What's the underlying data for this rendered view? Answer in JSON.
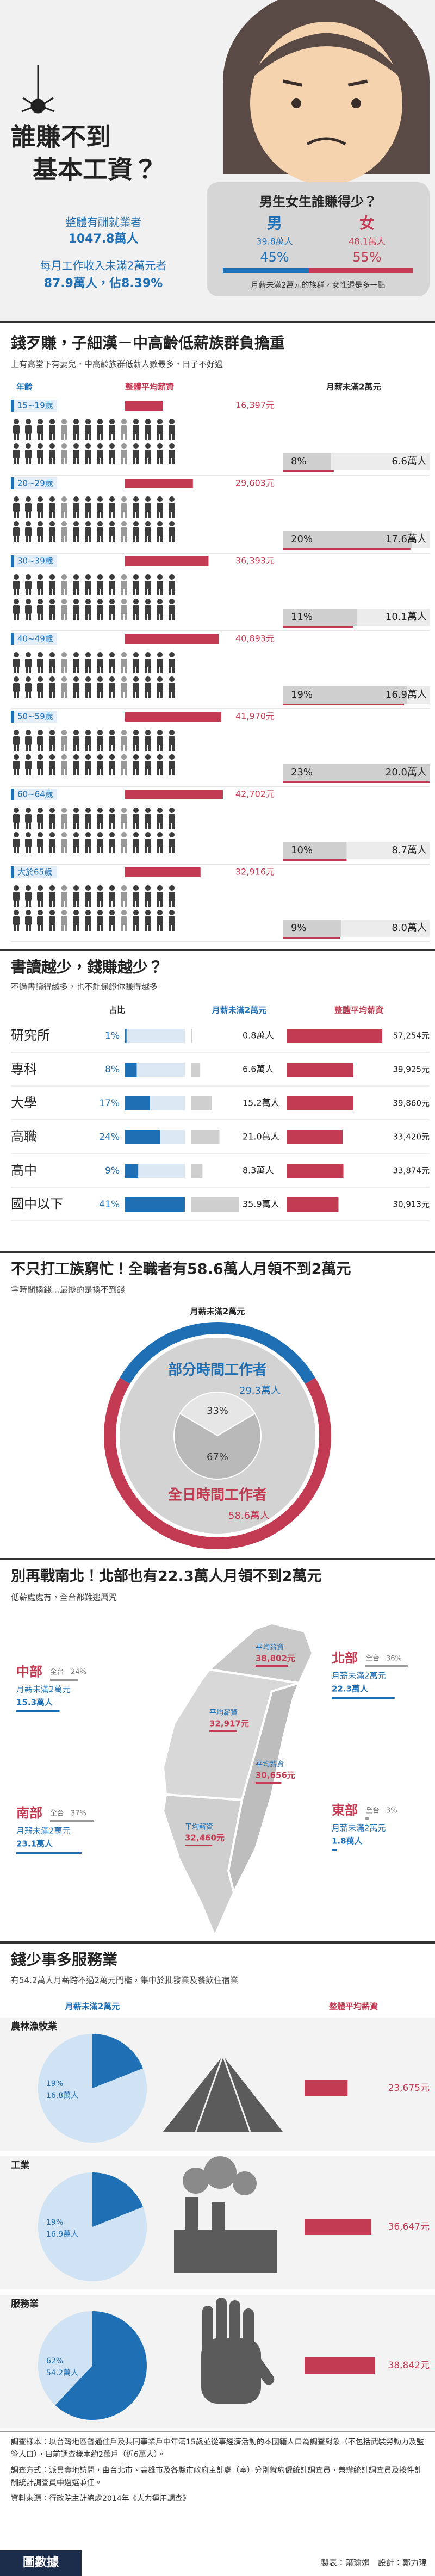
{
  "header": {
    "title_line1": "誰賺不到",
    "title_line2": "基本工資？",
    "employed_label": "整體有酬就業者",
    "employed_value": "1047.8萬人",
    "low_label": "每月工作收入未滿2萬元者",
    "low_value": "87.9萬人，佔8.39%"
  },
  "gender": {
    "title": "男生女生誰賺得少？",
    "categories": [
      "男",
      "女"
    ],
    "count": {
      "values": [
        39.8,
        48.1
      ],
      "value_labels": [
        "39.8萬人",
        "48.1萬人"
      ]
    },
    "share": {
      "values": [
        45,
        55
      ],
      "value_labels": [
        "45%",
        "55%"
      ]
    },
    "note": "月薪未滿2萬元的族群，女性還是多一點"
  },
  "age": {
    "title": "錢歹賺，子細漢－中高齡低薪族群負擔重",
    "subtitle": "上有高堂下有妻兒，中高齡族群低薪人數最多，日子不好過",
    "column_headers": [
      "年齡",
      "整體平均薪資",
      "月薪未滿2萬元"
    ],
    "categories": [
      "15~19歲",
      "20~29歲",
      "30~39歲",
      "40~49歲",
      "50~59歲",
      "60~64歲",
      "大於65歲"
    ],
    "salary": {
      "values": [
        16397,
        29603,
        36393,
        40893,
        41970,
        42702,
        32916
      ],
      "value_labels": [
        "16,397元",
        "29,603元",
        "36,393元",
        "40,893元",
        "41,970元",
        "42,702元",
        "32,916元"
      ]
    },
    "share": {
      "values": [
        8,
        20,
        11,
        19,
        23,
        10,
        9
      ],
      "value_labels": [
        "8%",
        "20%",
        "11%",
        "19%",
        "23%",
        "10%",
        "9%"
      ]
    },
    "count": {
      "values": [
        6.6,
        17.6,
        10.1,
        16.9,
        20.0,
        8.7,
        8.0
      ],
      "value_labels": [
        "6.6萬人",
        "17.6萬人",
        "10.1萬人",
        "16.9萬人",
        "20.0萬人",
        "8.7萬人",
        "8.0萬人"
      ]
    }
  },
  "education": {
    "title": "書讀越少，錢賺越少？",
    "subtitle": "不過書讀得越多，也不能保證你賺得越多",
    "column_headers": [
      "占比",
      "月薪未滿2萬元",
      "整體平均薪資"
    ],
    "categories": [
      "研究所",
      "專科",
      "大學",
      "高職",
      "高中",
      "國中以下"
    ],
    "share": {
      "values": [
        1,
        8,
        17,
        24,
        9,
        41
      ],
      "value_labels": [
        "1%",
        "8%",
        "17%",
        "24%",
        "9%",
        "41%"
      ]
    },
    "count": {
      "values": [
        0.8,
        6.6,
        15.2,
        21.0,
        8.3,
        35.9
      ],
      "value_labels": [
        "0.8萬人",
        "6.6萬人",
        "15.2萬人",
        "21.0萬人",
        "8.3萬人",
        "35.9萬人"
      ]
    },
    "salary": {
      "values": [
        57254,
        39925,
        39860,
        33420,
        33874,
        30913
      ],
      "value_labels": [
        "57,254元",
        "39,925元",
        "39,860元",
        "33,420元",
        "33,874元",
        "30,913元"
      ]
    }
  },
  "worktime": {
    "type": "donut",
    "title": "不只打工族窮忙！全職者有58.6萬人月領不到2萬元",
    "subtitle": "拿時間換錢…最慘的是換不到錢",
    "center_label": "月薪未滿2萬元",
    "categories": [
      "部分時間工作者",
      "全日時間工作者"
    ],
    "colors": [
      "#1f6fb5",
      "#c23b52"
    ],
    "share": {
      "values": [
        33,
        67
      ],
      "value_labels": [
        "33%",
        "67%"
      ]
    },
    "count": {
      "values": [
        29.3,
        58.6
      ],
      "value_labels": [
        "29.3萬人",
        "58.6萬人"
      ]
    }
  },
  "region": {
    "title": "別再戰南北！北部也有22.3萬人月領不到2萬元",
    "subtitle": "低薪處處有，全台都難逃厲咒",
    "regions": [
      {
        "name": "北部",
        "share_prefix": "全台",
        "share": 36,
        "share_label": "36%",
        "count_title": "月薪未滿2萬元",
        "count": 22.3,
        "count_label": "22.3萬人",
        "salary_title": "平均薪資",
        "salary": 38802,
        "salary_label": "38,802元"
      },
      {
        "name": "中部",
        "share_prefix": "全台",
        "share": 24,
        "share_label": "24%",
        "count_title": "月薪未滿2萬元",
        "count": 15.3,
        "count_label": "15.3萬人",
        "salary_title": "平均薪資",
        "salary": 32917,
        "salary_label": "32,917元"
      },
      {
        "name": "南部",
        "share_prefix": "全台",
        "share": 37,
        "share_label": "37%",
        "count_title": "月薪未滿2萬元",
        "count": 23.1,
        "count_label": "23.1萬人",
        "salary_title": "平均薪資",
        "salary": 32460,
        "salary_label": "32,460元"
      },
      {
        "name": "東部",
        "share_prefix": "全台",
        "share": 3,
        "share_label": "3%",
        "count_title": "月薪未滿2萬元",
        "count": 1.8,
        "count_label": "1.8萬人",
        "salary_title": "平均薪資",
        "salary": 30656,
        "salary_label": "30,656元"
      }
    ]
  },
  "industry": {
    "title": "錢少事多服務業",
    "subtitle": "有54.2萬人月薪跨不過2萬元門檻，集中於批發業及餐飲住宿業",
    "column_headers": [
      "月薪未滿2萬元",
      "整體平均薪資"
    ],
    "categories": [
      "農林漁牧業",
      "工業",
      "服務業"
    ],
    "share": {
      "values": [
        19,
        19,
        62
      ],
      "value_labels": [
        "19%",
        "19%",
        "62%"
      ]
    },
    "count": {
      "values": [
        16.8,
        16.9,
        54.2
      ],
      "value_labels": [
        "16.8萬人",
        "16.9萬人",
        "54.2萬人"
      ]
    },
    "salary": {
      "values": [
        23675,
        36647,
        38842
      ],
      "value_labels": [
        "23,675元",
        "36,647元",
        "38,842元"
      ]
    }
  },
  "footer": {
    "notes": [
      "調查樣本：以台灣地區普通住戶及共同事業戶中年滿15歲並從事經濟活動的本國籍人口為調查對象（不包括武裝勞動力及監管人口），目前調查樣本約2萬戶（近6萬人）。",
      "調查方式：派員實地訪問，由台北市、高雄市及各縣市政府主計處（室）分別就約僱統計調查員、兼辦統計調查員及按件計酬統計調查員中遴選兼任。",
      "資料來源：行政院主計總處2014年《人力運用調查》"
    ],
    "logo": "圖數據",
    "credits": "製表：葉瑜娟　設計：鄭力瑋"
  }
}
